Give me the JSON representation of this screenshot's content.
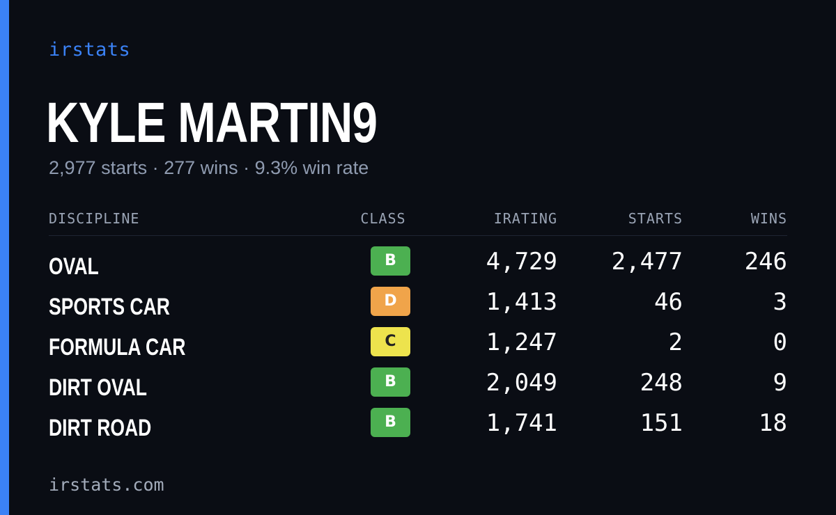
{
  "brand": "irstats",
  "driver": {
    "name": "KYLE MARTIN9",
    "summary": "2,977 starts · 277 wins · 9.3% win rate"
  },
  "table": {
    "headers": {
      "discipline": "DISCIPLINE",
      "class": "CLASS",
      "irating": "IRATING",
      "starts": "STARTS",
      "wins": "WINS"
    },
    "rows": [
      {
        "discipline": "OVAL",
        "class": "B",
        "class_color": "#4cb051",
        "class_text_color": "#ffffff",
        "irating": "4,729",
        "starts": "2,477",
        "wins": "246"
      },
      {
        "discipline": "SPORTS CAR",
        "class": "D",
        "class_color": "#f0a44a",
        "class_text_color": "#ffffff",
        "irating": "1,413",
        "starts": "46",
        "wins": "3"
      },
      {
        "discipline": "FORMULA CAR",
        "class": "C",
        "class_color": "#ede34d",
        "class_text_color": "#222222",
        "irating": "1,247",
        "starts": "2",
        "wins": "0"
      },
      {
        "discipline": "DIRT OVAL",
        "class": "B",
        "class_color": "#4cb051",
        "class_text_color": "#ffffff",
        "irating": "2,049",
        "starts": "248",
        "wins": "9"
      },
      {
        "discipline": "DIRT ROAD",
        "class": "B",
        "class_color": "#4cb051",
        "class_text_color": "#ffffff",
        "irating": "1,741",
        "starts": "151",
        "wins": "18"
      }
    ]
  },
  "footer": "irstats.com",
  "colors": {
    "accent": "#3b82f6",
    "background": "#0a0d14"
  }
}
